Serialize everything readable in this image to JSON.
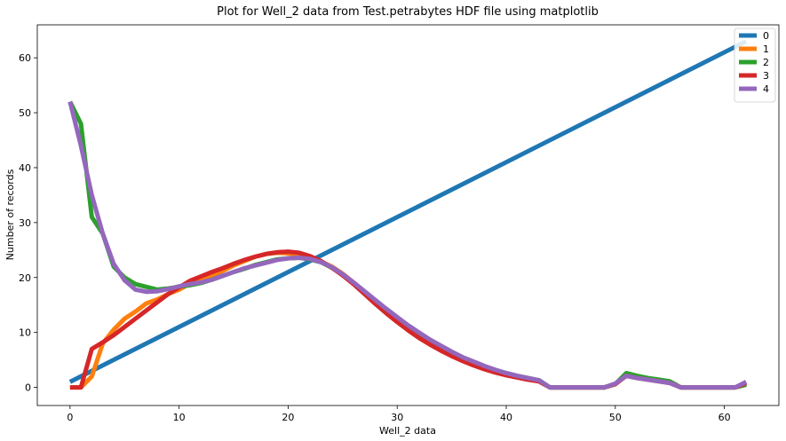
{
  "chart_data": {
    "type": "line",
    "title": "Plot for Well_2 data from Test.petrabytes HDF file using matplotlib",
    "xlabel": "Well_2 data",
    "ylabel": "Number of records",
    "xlim": [
      -3,
      65
    ],
    "ylim": [
      -3.3,
      66
    ],
    "xticks": [
      0,
      10,
      20,
      30,
      40,
      50,
      60
    ],
    "yticks": [
      0,
      10,
      20,
      30,
      40,
      50,
      60
    ],
    "grid": false,
    "legend_position": "top-right",
    "series": [
      {
        "name": "0",
        "color": "#1f77b4",
        "x": [
          0,
          62
        ],
        "y": [
          1,
          63
        ]
      },
      {
        "name": "1",
        "color": "#ff7f0e",
        "x": [
          0,
          1,
          2,
          3,
          4,
          5,
          6,
          7,
          8,
          9,
          10,
          11,
          12,
          13,
          14,
          15,
          16,
          17,
          18,
          19,
          20,
          21,
          22,
          23,
          24,
          25,
          26,
          27,
          28,
          29,
          30,
          31,
          32,
          33,
          34,
          35,
          36,
          37,
          38,
          39,
          40,
          41,
          42,
          43,
          44,
          45,
          46,
          47,
          48,
          49,
          50,
          51,
          52,
          53,
          54,
          55,
          56,
          57,
          58,
          59,
          60,
          61,
          62
        ],
        "y": [
          0,
          0,
          2,
          8,
          10.5,
          12.5,
          13.8,
          15.3,
          16,
          17,
          17.8,
          18.9,
          19.5,
          20.3,
          21.2,
          22.2,
          23,
          23.8,
          24.3,
          24.5,
          24.4,
          24.1,
          23.6,
          22.9,
          22,
          20.7,
          19.1,
          17.4,
          15.7,
          14,
          12.4,
          10.9,
          9.5,
          8.2,
          7.1,
          6.1,
          5.1,
          4.3,
          3.6,
          2.9,
          2.4,
          1.9,
          1.5,
          1.1,
          0,
          0,
          0,
          0,
          0,
          0,
          0.6,
          2.3,
          1.9,
          1.5,
          1.2,
          0.9,
          0,
          0,
          0,
          0,
          0,
          0,
          0.5
        ]
      },
      {
        "name": "2",
        "color": "#2ca02c",
        "x": [
          0,
          1,
          2,
          3,
          4,
          5,
          6,
          7,
          8,
          9,
          10,
          11,
          12,
          13,
          14,
          15,
          16,
          17,
          18,
          19,
          20,
          21,
          22,
          23,
          24,
          25,
          26,
          27,
          28,
          29,
          30,
          31,
          32,
          33,
          34,
          35,
          36,
          37,
          38,
          39,
          40,
          41,
          42,
          43,
          44,
          45,
          46,
          47,
          48,
          49,
          50,
          51,
          52,
          53,
          54,
          55,
          56,
          57,
          58,
          59,
          60,
          61,
          62
        ],
        "y": [
          52,
          48,
          31,
          28,
          22,
          20,
          18.8,
          18.3,
          17.8,
          18,
          18.3,
          18.6,
          19,
          19.6,
          20.3,
          21,
          21.6,
          22.3,
          22.8,
          23.3,
          23.5,
          23.6,
          23.3,
          22.8,
          21.8,
          20.5,
          19,
          17.4,
          15.8,
          14.2,
          12.7,
          11.2,
          9.9,
          8.6,
          7.5,
          6.4,
          5.4,
          4.6,
          3.8,
          3.1,
          2.6,
          2.1,
          1.7,
          1.3,
          0,
          0,
          0,
          0,
          0,
          0,
          0.6,
          2.6,
          2.1,
          1.7,
          1.4,
          1.1,
          0,
          0,
          0,
          0,
          0,
          0,
          0.5
        ]
      },
      {
        "name": "3",
        "color": "#d62728",
        "x": [
          0,
          1,
          2,
          3,
          4,
          5,
          6,
          7,
          8,
          9,
          10,
          11,
          12,
          13,
          14,
          15,
          16,
          17,
          18,
          19,
          20,
          21,
          22,
          23,
          24,
          25,
          26,
          27,
          28,
          29,
          30,
          31,
          32,
          33,
          34,
          35,
          36,
          37,
          38,
          39,
          40,
          41,
          42,
          43,
          44,
          45,
          46,
          47,
          48,
          49,
          50,
          51,
          52,
          53,
          54,
          55,
          56,
          57,
          58,
          59,
          60,
          61,
          62
        ],
        "y": [
          0,
          0,
          7,
          8.2,
          9.5,
          11,
          12.5,
          14,
          15.5,
          17,
          18.2,
          19.4,
          20.2,
          21,
          21.7,
          22.5,
          23.2,
          23.8,
          24.3,
          24.6,
          24.7,
          24.5,
          23.9,
          23,
          21.8,
          20.4,
          18.8,
          17,
          15.2,
          13.5,
          11.9,
          10.4,
          9,
          7.8,
          6.7,
          5.7,
          4.8,
          4,
          3.3,
          2.7,
          2.2,
          1.8,
          1.4,
          1.1,
          0,
          0,
          0,
          0,
          0,
          0,
          0.6,
          2.1,
          1.7,
          1.4,
          1.1,
          0.8,
          0,
          0,
          0,
          0,
          0,
          0,
          0.8
        ]
      },
      {
        "name": "4",
        "color": "#9467bd",
        "x": [
          0,
          1,
          2,
          3,
          4,
          5,
          6,
          7,
          8,
          9,
          10,
          11,
          12,
          13,
          14,
          15,
          16,
          17,
          18,
          19,
          20,
          21,
          22,
          23,
          24,
          25,
          26,
          27,
          28,
          29,
          30,
          31,
          32,
          33,
          34,
          35,
          36,
          37,
          38,
          39,
          40,
          41,
          42,
          43,
          44,
          45,
          46,
          47,
          48,
          49,
          50,
          51,
          52,
          53,
          54,
          55,
          56,
          57,
          58,
          59,
          60,
          61,
          62
        ],
        "y": [
          52,
          44,
          35,
          28,
          22.5,
          19.5,
          17.8,
          17.4,
          17.5,
          17.9,
          18.4,
          18.8,
          19.1,
          19.6,
          20.3,
          21,
          21.7,
          22.2,
          22.7,
          23.2,
          23.5,
          23.6,
          23.4,
          22.8,
          21.9,
          20.6,
          19.1,
          17.5,
          15.9,
          14.3,
          12.8,
          11.3,
          10,
          8.7,
          7.6,
          6.5,
          5.5,
          4.7,
          3.9,
          3.2,
          2.6,
          2.1,
          1.7,
          1.3,
          0,
          0,
          0,
          0,
          0,
          0,
          0.7,
          2.1,
          1.7,
          1.4,
          1.1,
          0.8,
          0,
          0,
          0,
          0,
          0,
          0,
          1
        ]
      }
    ]
  }
}
